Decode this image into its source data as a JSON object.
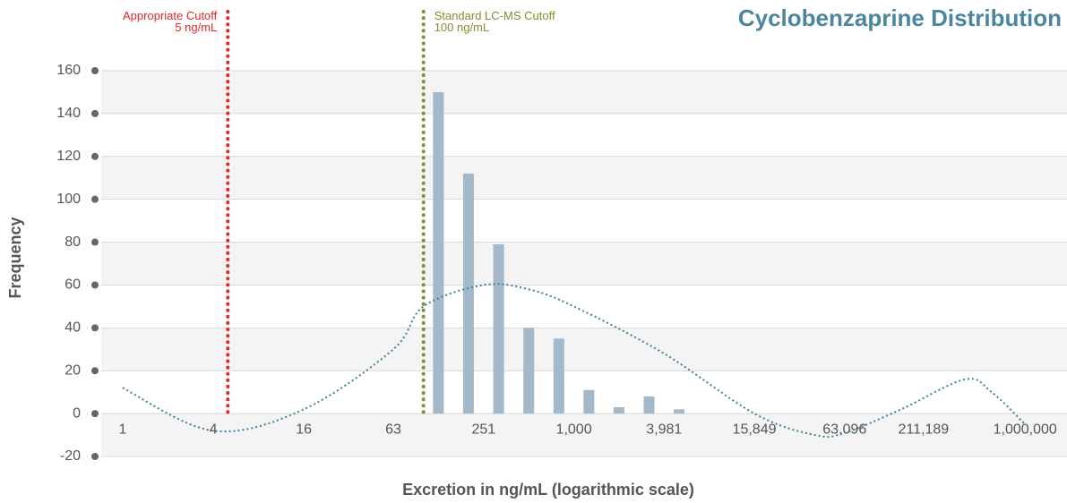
{
  "chart_data": {
    "type": "histogram",
    "title": "Cyclobenzaprine Distribution",
    "xlabel": "Excretion in ng/mL (logarithmic scale)",
    "ylabel": "Frequency",
    "xlog": true,
    "grid": true,
    "bins": [
      100,
      158,
      251,
      398,
      631,
      1000,
      1585,
      2512,
      3981,
      6310
    ],
    "values": [
      150,
      112,
      79,
      40,
      35,
      11,
      3,
      8,
      2
    ],
    "color": "#a3b8c8",
    "xlim": [
      0.72,
      1900000
    ],
    "xticks": [
      1,
      4,
      16,
      63,
      251,
      {
        "value": 1000,
        "label": "1,000"
      },
      {
        "value": 3981,
        "label": "3,981"
      },
      {
        "value": 15849,
        "label": "15,849"
      },
      {
        "value": 63096,
        "label": "63,096"
      },
      {
        "value": 211189,
        "label": "211,189"
      },
      {
        "value": 1000000,
        "label": "1,000,000"
      }
    ],
    "ylim": [
      -20,
      160
    ],
    "yticks": [
      -20,
      0,
      20,
      40,
      60,
      80,
      100,
      120,
      140,
      160
    ],
    "curve": {
      "color": "#3f7f9a",
      "x": [
        1,
        4,
        16,
        63,
        100,
        251,
        500,
        1000,
        3981,
        15849,
        40000,
        63096,
        150000,
        400000,
        600000,
        1000000
      ],
      "values": [
        12,
        -8,
        2,
        30,
        50,
        60,
        58,
        50,
        28,
        0,
        -10,
        -9,
        2,
        16,
        10,
        -5
      ]
    },
    "annotations": [
      {
        "x": 5,
        "lines": [
          "Appropriate Cutoff",
          "5 ng/mL"
        ],
        "color": "#e02828"
      },
      {
        "x": 100,
        "lines": [
          "Standard LC-MS Cutoff",
          "100 ng/mL"
        ],
        "color": "#8a8a30"
      }
    ]
  }
}
